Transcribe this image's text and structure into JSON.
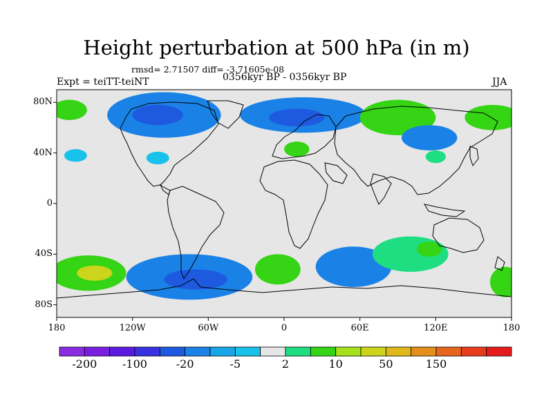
{
  "title": "Height perturbation at 500 hPa (in m)",
  "stats": "rmsd= 2.71507 diff= -3.71605e-08",
  "experiment": "Expt = teiTT-teiNT",
  "period": "0356kyr BP - 0356kyr BP",
  "season": "JJA",
  "map": {
    "lon_range": [
      -180,
      180
    ],
    "lat_range": [
      -90,
      90
    ],
    "lat_ticks": [
      {
        "value": 80,
        "label": "80N"
      },
      {
        "value": 40,
        "label": "40N"
      },
      {
        "value": 0,
        "label": "0"
      },
      {
        "value": -40,
        "label": "40S"
      },
      {
        "value": -80,
        "label": "80S"
      }
    ],
    "lon_ticks": [
      {
        "value": -180,
        "label": "180"
      },
      {
        "value": -120,
        "label": "120W"
      },
      {
        "value": -60,
        "label": "60W"
      },
      {
        "value": 0,
        "label": "0"
      },
      {
        "value": 60,
        "label": "60E"
      },
      {
        "value": 120,
        "label": "120E"
      },
      {
        "value": 180,
        "label": "180"
      }
    ],
    "background_color": "#e6e6e6"
  },
  "colorbar": {
    "colors": [
      "#8a2be2",
      "#7a1fe0",
      "#5a1ae0",
      "#3a32e0",
      "#1e5ae0",
      "#1a82e6",
      "#17a6e8",
      "#19c2ea",
      "#e6e6e6",
      "#1fde82",
      "#35d414",
      "#a6e21c",
      "#ccd41c",
      "#e0b81c",
      "#e68e1c",
      "#e6661c",
      "#e63c1c",
      "#e61c1c"
    ],
    "labels": [
      {
        "boundary": 1,
        "text": "-200"
      },
      {
        "boundary": 3,
        "text": "-100"
      },
      {
        "boundary": 5,
        "text": "-20"
      },
      {
        "boundary": 7,
        "text": "-5"
      },
      {
        "boundary": 9,
        "text": "2"
      },
      {
        "boundary": 11,
        "text": "10"
      },
      {
        "boundary": 13,
        "text": "50"
      },
      {
        "boundary": 15,
        "text": "150"
      }
    ]
  },
  "anomaly_regions": [
    {
      "name": "nw-pacific-arctic-green",
      "color": "#35d414",
      "lon": -170,
      "lat": 74,
      "rlon": 14,
      "rlat": 8
    },
    {
      "name": "canada-arctic-low",
      "color": "#1a82e6",
      "lon": -95,
      "lat": 70,
      "rlon": 45,
      "rlat": 18
    },
    {
      "name": "canada-arctic-core",
      "color": "#1e5ae0",
      "lon": -100,
      "lat": 70,
      "rlon": 20,
      "rlat": 8
    },
    {
      "name": "eurasia-arctic-low",
      "color": "#1a82e6",
      "lon": 15,
      "lat": 70,
      "rlon": 50,
      "rlat": 14
    },
    {
      "name": "eurasia-arctic-core",
      "color": "#1e5ae0",
      "lon": 10,
      "lat": 68,
      "rlon": 22,
      "rlat": 7
    },
    {
      "name": "europe-green",
      "color": "#35d414",
      "lon": 10,
      "lat": 43,
      "rlon": 10,
      "rlat": 6
    },
    {
      "name": "siberia-green",
      "color": "#35d414",
      "lon": 90,
      "lat": 68,
      "rlon": 30,
      "rlat": 14
    },
    {
      "name": "east-asia-low",
      "color": "#1a82e6",
      "lon": 115,
      "lat": 52,
      "rlon": 22,
      "rlat": 10
    },
    {
      "name": "kamchatka-green",
      "color": "#35d414",
      "lon": 165,
      "lat": 68,
      "rlon": 22,
      "rlat": 10
    },
    {
      "name": "china-green",
      "color": "#1fde82",
      "lon": 120,
      "lat": 37,
      "rlon": 8,
      "rlat": 5
    },
    {
      "name": "pacific-small-low",
      "color": "#19c2ea",
      "lon": -165,
      "lat": 38,
      "rlon": 9,
      "rlat": 5
    },
    {
      "name": "atlantic-small-low",
      "color": "#19c2ea",
      "lon": -100,
      "lat": 36,
      "rlon": 9,
      "rlat": 5
    },
    {
      "name": "s-pacific-high",
      "color": "#35d414",
      "lon": -155,
      "lat": -55,
      "rlon": 30,
      "rlat": 14
    },
    {
      "name": "s-pacific-core",
      "color": "#ccd41c",
      "lon": -150,
      "lat": -55,
      "rlon": 14,
      "rlat": 6
    },
    {
      "name": "antarctic-pen-low",
      "color": "#1a82e6",
      "lon": -75,
      "lat": -58,
      "rlon": 50,
      "rlat": 18
    },
    {
      "name": "antarctic-pen-core",
      "color": "#1e5ae0",
      "lon": -70,
      "lat": -60,
      "rlon": 25,
      "rlat": 8
    },
    {
      "name": "s-atlantic-high",
      "color": "#35d414",
      "lon": -5,
      "lat": -52,
      "rlon": 18,
      "rlat": 12
    },
    {
      "name": "indian-ocean-low",
      "color": "#1a82e6",
      "lon": 55,
      "lat": -50,
      "rlon": 30,
      "rlat": 16
    },
    {
      "name": "indian-ocean-green",
      "color": "#1fde82",
      "lon": 100,
      "lat": -40,
      "rlon": 30,
      "rlat": 14
    },
    {
      "name": "australia-green",
      "color": "#35d414",
      "lon": 115,
      "lat": -36,
      "rlon": 10,
      "rlat": 6
    },
    {
      "name": "sw-pacific-green",
      "color": "#35d414",
      "lon": 175,
      "lat": -62,
      "rlon": 12,
      "rlat": 12
    }
  ]
}
